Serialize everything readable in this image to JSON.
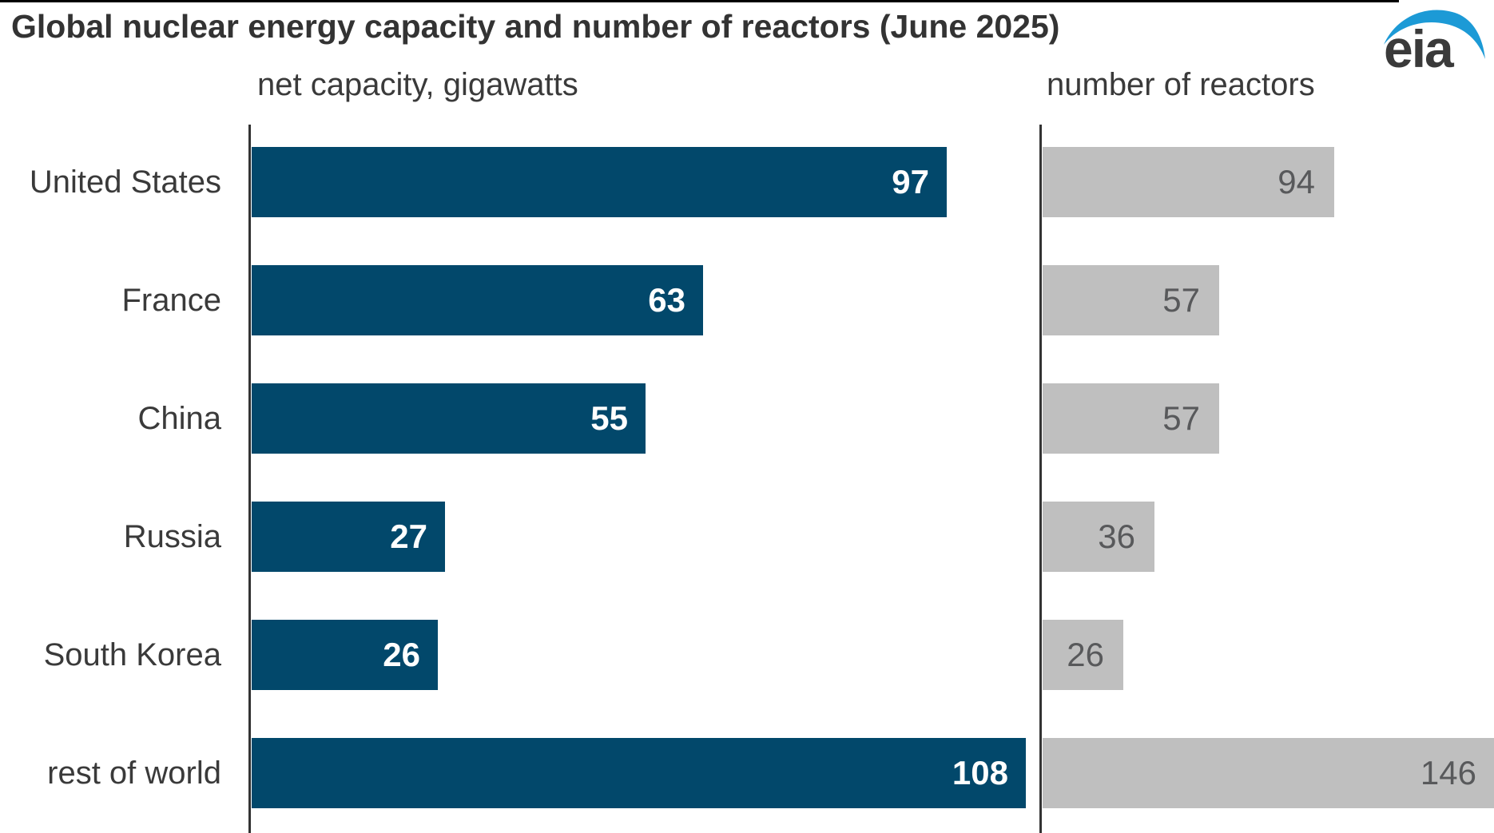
{
  "title": "Global nuclear energy capacity and number of reactors (June 2025)",
  "logo": {
    "text": "eia",
    "swoosh_color": "#1C9AD6",
    "text_color": "#3a3a3a"
  },
  "colors": {
    "capacity_bar": "#02486B",
    "reactors_bar": "#BFBFBF",
    "capacity_value_label": "#ffffff",
    "reactors_value_label": "#58595B",
    "axis_line": "#333333",
    "text": "#3a3a3a",
    "top_rule": "#000000",
    "background": "#ffffff"
  },
  "chart_data": {
    "type": "bar",
    "orientation": "horizontal",
    "title": "Global nuclear energy capacity and number of reactors (June 2025)",
    "categories": [
      "United States",
      "France",
      "China",
      "Russia",
      "South Korea",
      "rest of world"
    ],
    "series": [
      {
        "name": "net capacity, gigawatts",
        "values": [
          97,
          63,
          55,
          27,
          26,
          108
        ],
        "axis_max": 108,
        "bar_color": "#02486B",
        "value_label_color": "#ffffff"
      },
      {
        "name": "number of reactors",
        "values": [
          94,
          57,
          57,
          36,
          26,
          146
        ],
        "axis_max": 146,
        "bar_color": "#BFBFBF",
        "value_label_color": "#58595B"
      }
    ],
    "value_labels_position": "inside-end",
    "legend": "none",
    "gridlines": false,
    "axes": "vertical baseline only, one per panel"
  }
}
